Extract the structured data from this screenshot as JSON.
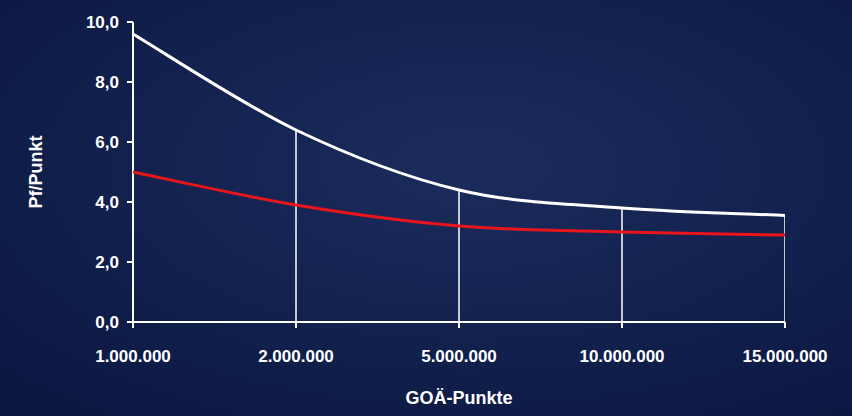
{
  "chart_data": {
    "type": "line",
    "x_label": "GOÄ-Punkte",
    "y_label": "Pf/Punkt",
    "categories": [
      "1.000.000",
      "2.000.000",
      "5.000.000",
      "10.000.000",
      "15.000.000"
    ],
    "series": [
      {
        "color": "#ffffff",
        "values": [
          9.6,
          6.4,
          4.4,
          3.8,
          3.55
        ]
      },
      {
        "color": "#e8151b",
        "values": [
          5.0,
          3.9,
          3.2,
          3.0,
          2.9
        ]
      }
    ],
    "ylim": [
      0,
      10
    ],
    "yticks": [
      {
        "value": 0,
        "label": "0,0"
      },
      {
        "value": 2,
        "label": "2,0"
      },
      {
        "value": 4,
        "label": "4,0"
      },
      {
        "value": 6,
        "label": "6,0"
      },
      {
        "value": 8,
        "label": "8,0"
      },
      {
        "value": 10,
        "label": "10,0"
      }
    ],
    "grid": false
  }
}
